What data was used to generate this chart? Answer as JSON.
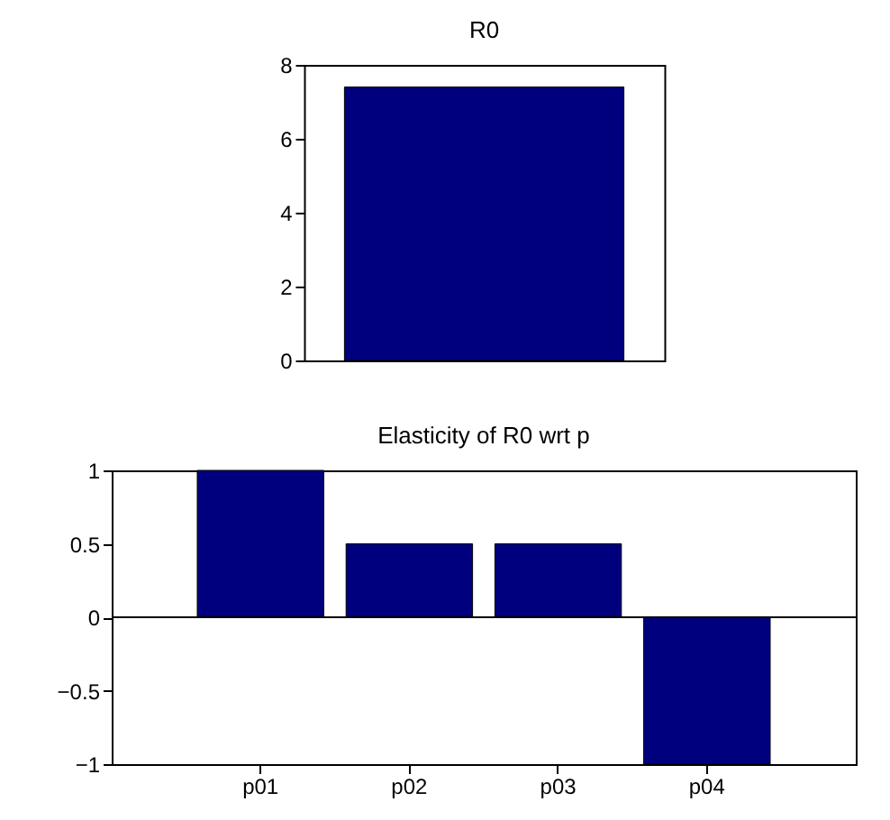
{
  "chart_data": [
    {
      "type": "bar",
      "title": "R0",
      "categories": [
        null
      ],
      "values": [
        7.4
      ],
      "color": "#00007f",
      "ylim": [
        0,
        8
      ],
      "yticks": [
        0,
        2,
        4,
        6,
        8
      ],
      "grid": false,
      "tick_labels": "y"
    },
    {
      "type": "bar",
      "title": "Elasticity of R0 wrt p",
      "categories": [
        "p01",
        "p02",
        "p03",
        "p04"
      ],
      "values": [
        1,
        0.5,
        0.5,
        -1
      ],
      "color": "#00007f",
      "ylim": [
        -1,
        1
      ],
      "yticks": [
        -1,
        -0.5,
        0,
        0.5,
        1
      ],
      "grid": false,
      "ref_lines": [
        {
          "axis": "y",
          "value": 0,
          "color": "#000000"
        }
      ]
    }
  ]
}
